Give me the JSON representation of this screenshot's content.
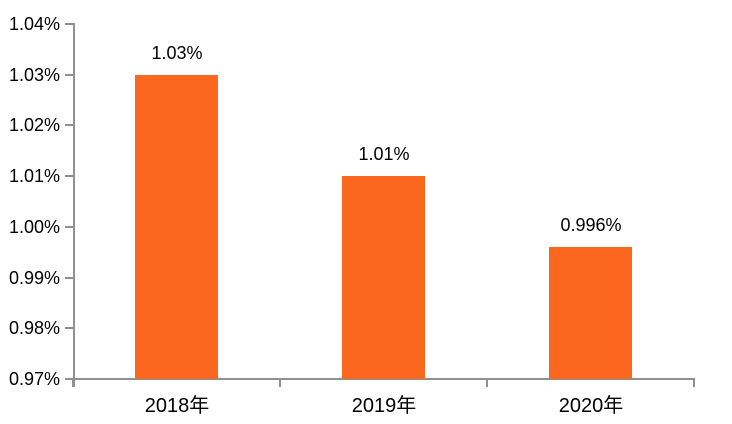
{
  "chart_data": {
    "type": "bar",
    "title": "",
    "categories": [
      "2018年",
      "2019年",
      "2020年"
    ],
    "values": [
      1.03,
      1.01,
      0.996
    ],
    "data_labels": [
      "1.03%",
      "1.01%",
      "0.996%"
    ],
    "xlabel": "",
    "ylabel": "",
    "ylim": [
      0.97,
      1.04
    ],
    "ytick_interval": 0.01,
    "ytick_labels": [
      "0.97%",
      "0.98%",
      "0.99%",
      "1.00%",
      "1.01%",
      "1.02%",
      "1.03%",
      "1.04%"
    ],
    "grid": false,
    "legend": null,
    "colors": {
      "bar": "#FB671F",
      "axis": "#909090",
      "text": "#000000",
      "background": "#FFFFFF"
    }
  }
}
